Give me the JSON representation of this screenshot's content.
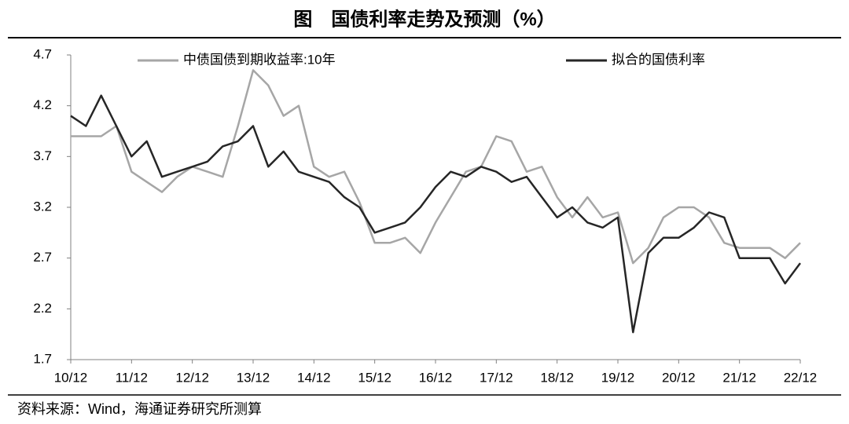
{
  "chart_data": {
    "type": "line",
    "title": "图　国债利率走势及预测（%）",
    "source": "资料来源：Wind，海通证券研究所测算",
    "categories": [
      "10/12",
      null,
      null,
      null,
      "11/12",
      null,
      null,
      null,
      "12/12",
      null,
      null,
      null,
      "13/12",
      null,
      null,
      null,
      "14/12",
      null,
      null,
      null,
      "15/12",
      null,
      null,
      null,
      "16/12",
      null,
      null,
      null,
      "17/12",
      null,
      null,
      null,
      "18/12",
      null,
      null,
      null,
      "19/12",
      null,
      null,
      null,
      "20/12",
      null,
      null,
      null,
      "21/12",
      null,
      null,
      null,
      "22/12"
    ],
    "series": [
      {
        "name": "中债国债到期收益率:10年",
        "color": "#a6a6a6",
        "values": [
          3.9,
          3.9,
          3.9,
          4.0,
          3.55,
          3.45,
          3.35,
          3.5,
          3.6,
          3.55,
          3.5,
          4.0,
          4.55,
          4.4,
          4.1,
          4.2,
          3.6,
          3.5,
          3.55,
          3.25,
          2.85,
          2.85,
          2.9,
          2.75,
          3.05,
          3.3,
          3.55,
          3.6,
          3.9,
          3.85,
          3.55,
          3.6,
          3.3,
          3.1,
          3.3,
          3.1,
          3.15,
          2.65,
          2.8,
          3.1,
          3.2,
          3.2,
          3.1,
          2.85,
          2.8,
          2.8,
          2.8,
          2.7,
          2.85
        ]
      },
      {
        "name": "拟合的国债利率",
        "color": "#262626",
        "values": [
          4.1,
          4.0,
          4.3,
          4.0,
          3.7,
          3.85,
          3.5,
          3.55,
          3.6,
          3.65,
          3.8,
          3.85,
          4.0,
          3.6,
          3.75,
          3.55,
          3.5,
          3.45,
          3.3,
          3.2,
          2.95,
          3.0,
          3.05,
          3.2,
          3.4,
          3.55,
          3.5,
          3.6,
          3.55,
          3.45,
          3.5,
          3.3,
          3.1,
          3.2,
          3.05,
          3.0,
          3.1,
          1.97,
          2.75,
          2.9,
          2.9,
          3.0,
          3.15,
          3.1,
          2.7,
          2.7,
          2.7,
          2.45,
          2.65
        ]
      }
    ],
    "ylim": [
      1.7,
      4.7
    ],
    "yticks": [
      1.7,
      2.2,
      2.7,
      3.2,
      3.7,
      4.2,
      4.7
    ],
    "grid": false,
    "legend": "top"
  }
}
